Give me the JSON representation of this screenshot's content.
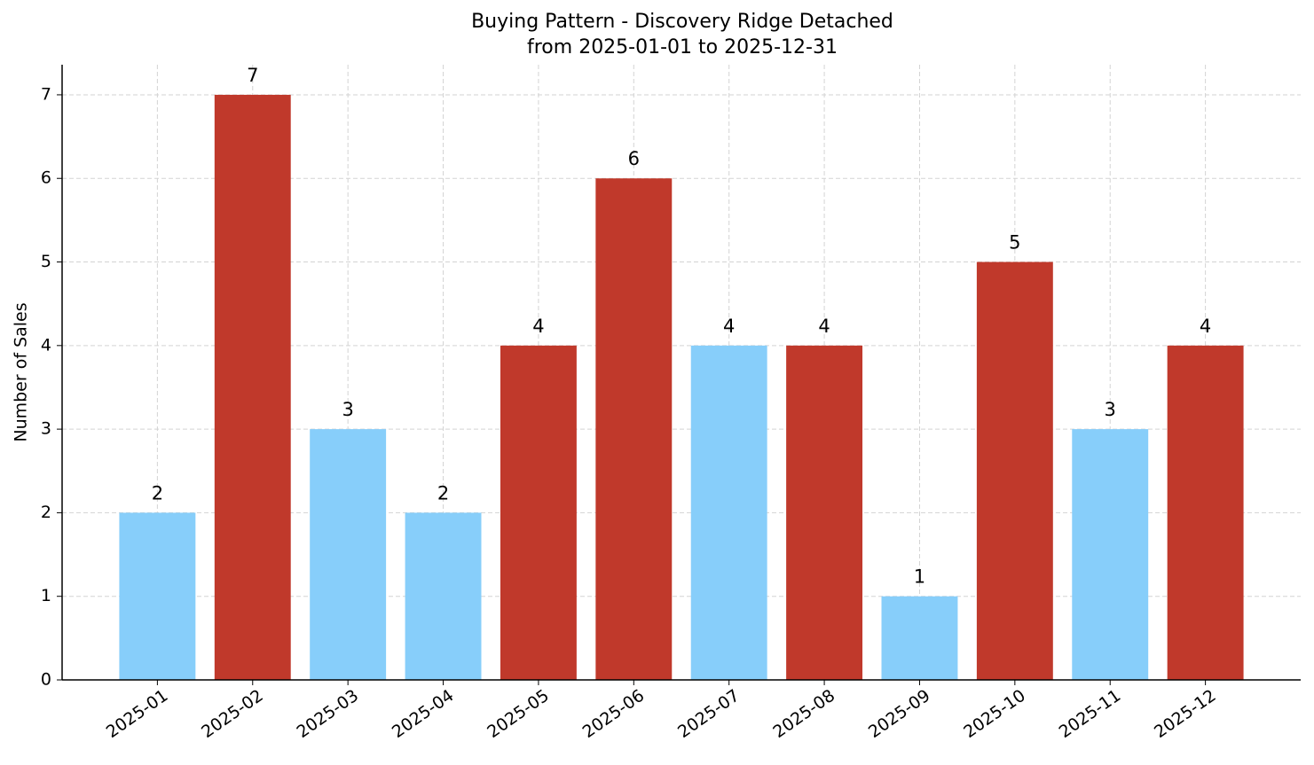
{
  "chart_data": {
    "type": "bar",
    "title": "Buying Pattern - Discovery Ridge Detached\nfrom 2025-01-01 to 2025-12-31",
    "y_label": "Number of Sales",
    "categories": [
      "2025-01",
      "2025-02",
      "2025-03",
      "2025-04",
      "2025-05",
      "2025-06",
      "2025-07",
      "2025-08",
      "2025-09",
      "2025-10",
      "2025-11",
      "2025-12"
    ],
    "values": [
      2,
      7,
      3,
      2,
      4,
      6,
      4,
      4,
      1,
      5,
      3,
      4
    ],
    "colors": [
      "#87cefa",
      "#c0392b",
      "#87cefa",
      "#87cefa",
      "#c0392b",
      "#c0392b",
      "#87cefa",
      "#c0392b",
      "#87cefa",
      "#c0392b",
      "#87cefa",
      "#c0392b"
    ],
    "ylim": [
      0,
      7.36
    ],
    "yticks": [
      0,
      1,
      2,
      3,
      4,
      5,
      6,
      7
    ],
    "grid": true
  }
}
